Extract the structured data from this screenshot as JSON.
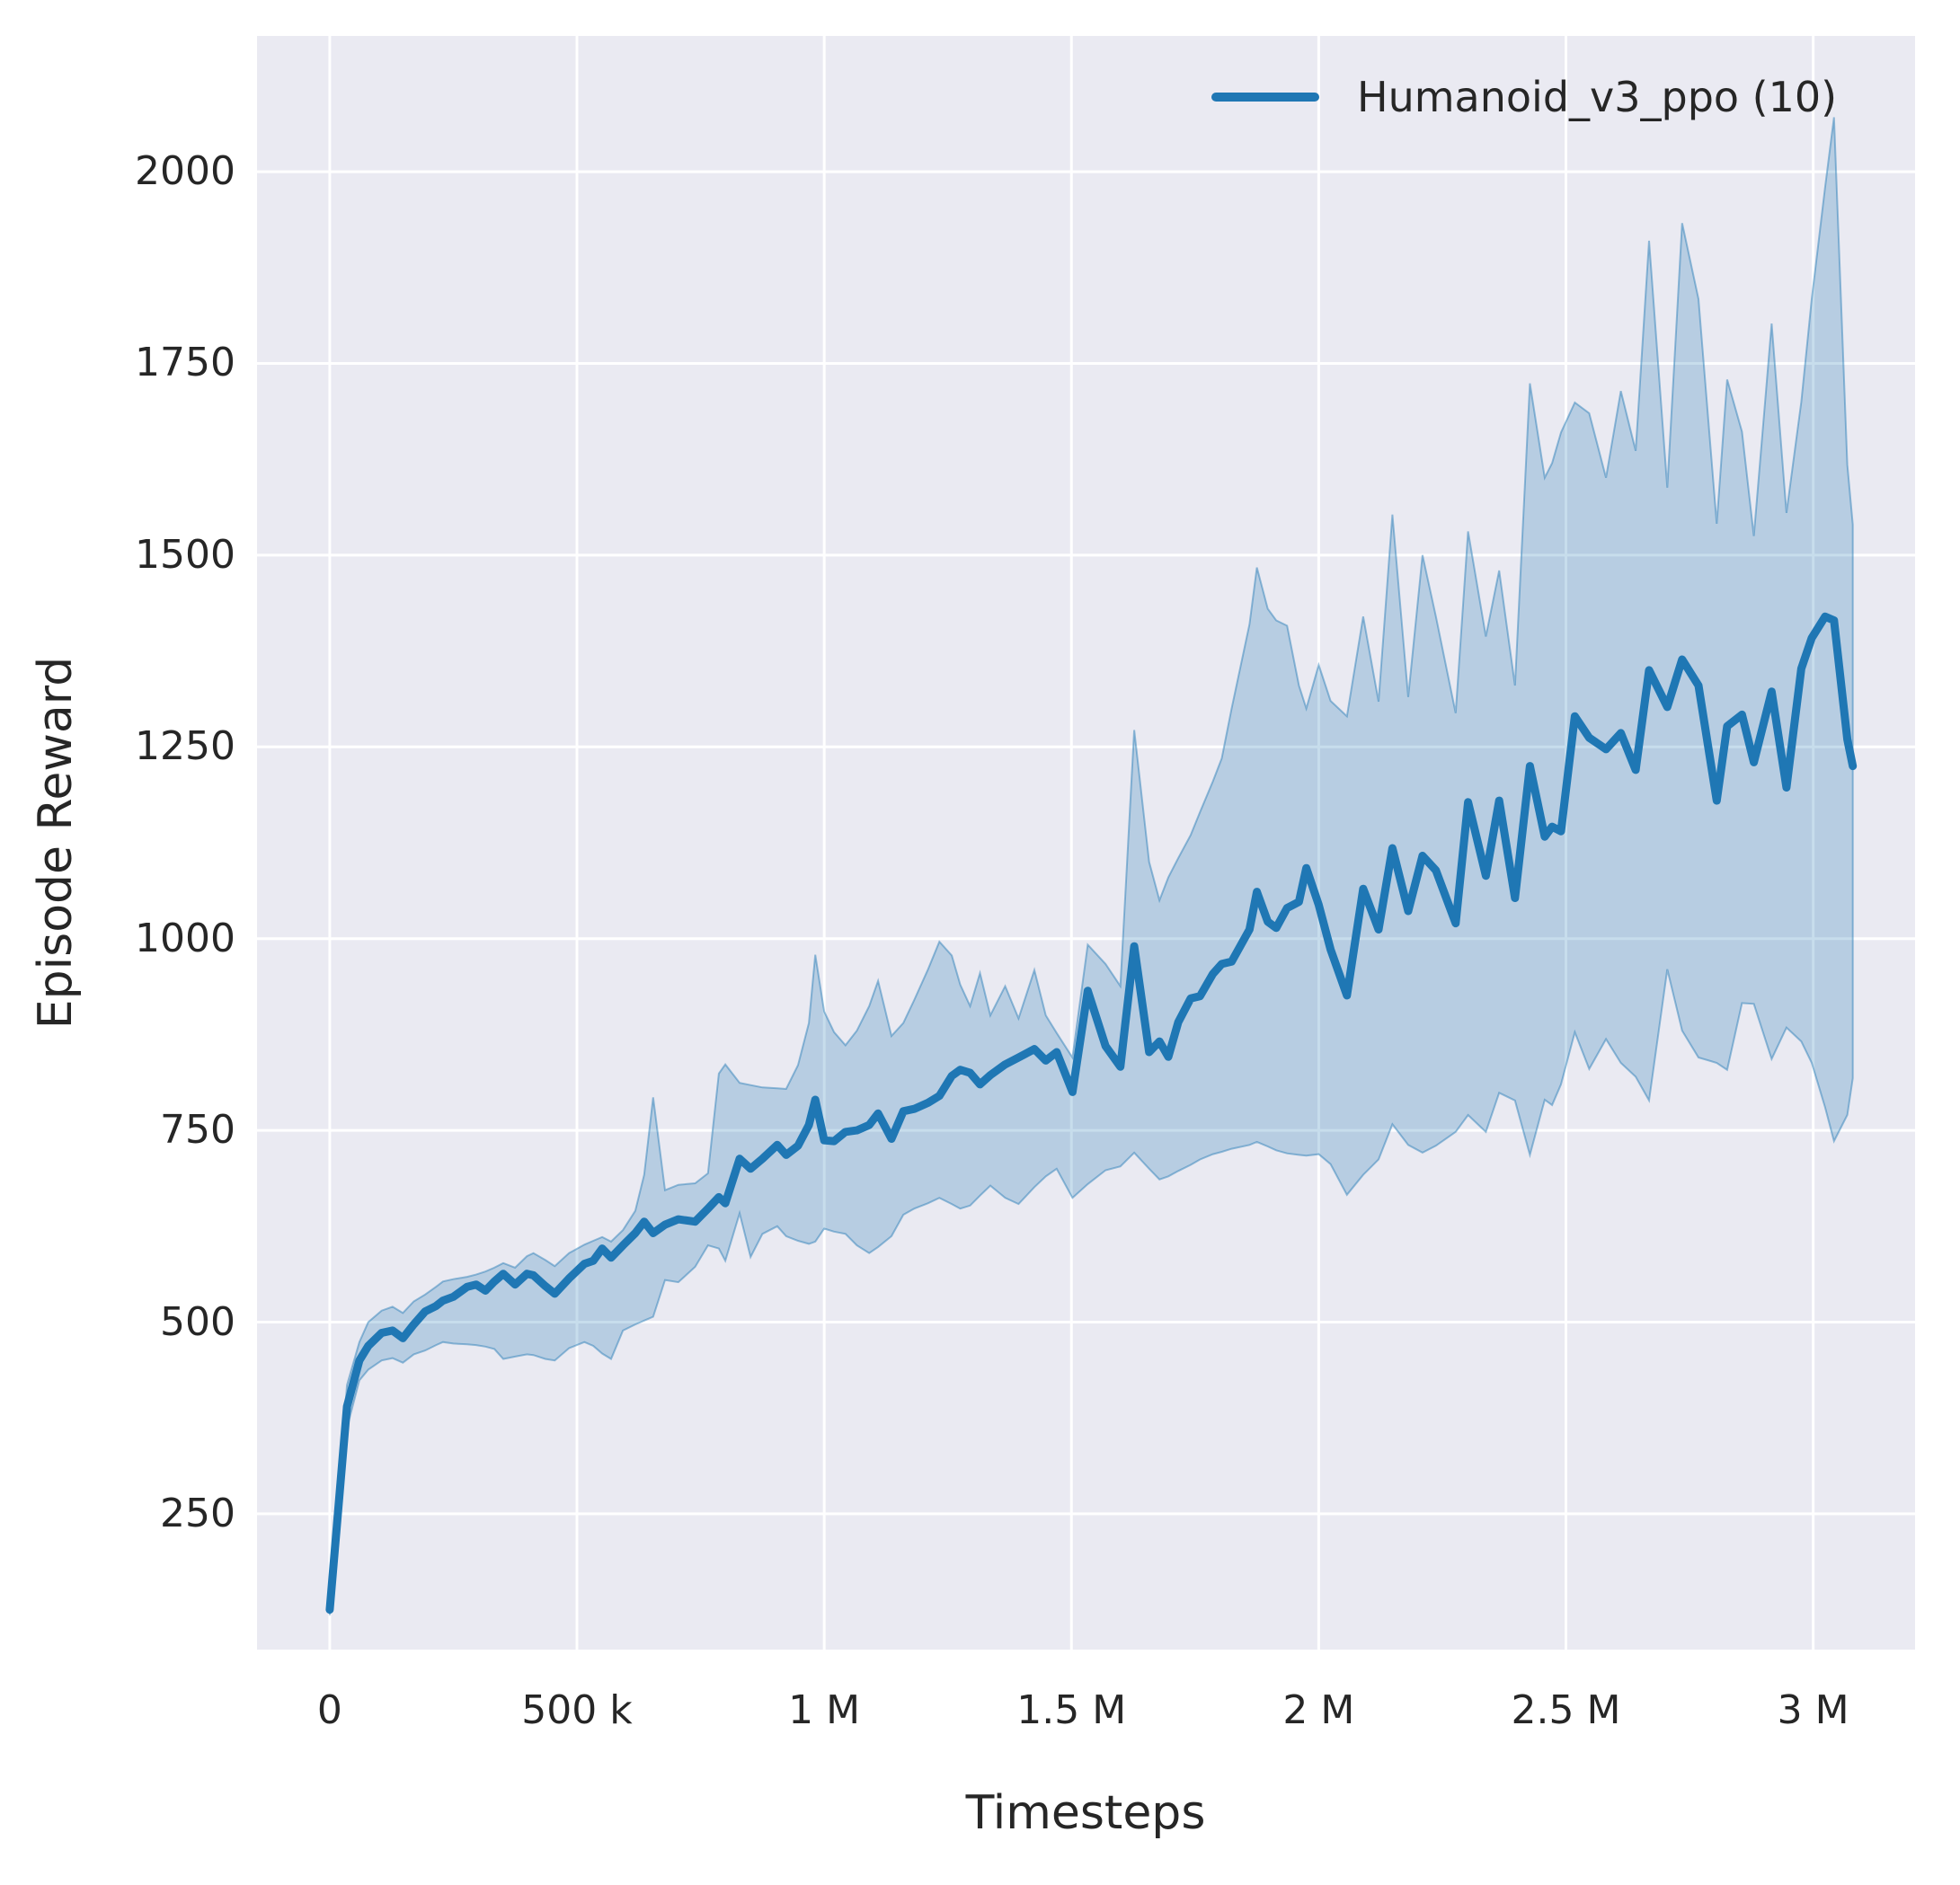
{
  "figure": {
    "background": "#ffffff",
    "axes_background": "#eaeaf2",
    "grid_color": "#ffffff",
    "text_color": "#262626"
  },
  "legend": {
    "entries": [
      {
        "label": "Humanoid_v3_ppo (10)",
        "color": "#1f77b4"
      }
    ]
  },
  "chart_data": {
    "type": "line",
    "title": "",
    "xlabel": "Timesteps",
    "ylabel": "Episode Reward",
    "legend_position": "upper right",
    "grid": true,
    "xlim": [
      -147000,
      3206000
    ],
    "ylim": [
      73,
      2177
    ],
    "x_ticks": [
      {
        "value": 0,
        "label": "0"
      },
      {
        "value": 500000,
        "label": "500 k"
      },
      {
        "value": 1000000,
        "label": "1 M"
      },
      {
        "value": 1500000,
        "label": "1.5 M"
      },
      {
        "value": 2000000,
        "label": "2 M"
      },
      {
        "value": 2500000,
        "label": "2.5 M"
      },
      {
        "value": 3000000,
        "label": "3 M"
      }
    ],
    "y_ticks": [
      {
        "value": 250,
        "label": "250"
      },
      {
        "value": 500,
        "label": "500"
      },
      {
        "value": 750,
        "label": "750"
      },
      {
        "value": 1000,
        "label": "1000"
      },
      {
        "value": 1250,
        "label": "1250"
      },
      {
        "value": 1500,
        "label": "1500"
      },
      {
        "value": 1750,
        "label": "1750"
      },
      {
        "value": 2000,
        "label": "2000"
      }
    ],
    "series": [
      {
        "name": "Humanoid_v3_ppo (10)",
        "color": "#1f77b4",
        "line_width": 9,
        "band_color": "#1f77b4",
        "band_opacity": 0.25,
        "points_format": [
          "timesteps_thousands",
          "mean",
          "band_low",
          "band_high"
        ],
        "points": [
          [
            0,
            125,
            118,
            135
          ],
          [
            35,
            390,
            362,
            418
          ],
          [
            60,
            450,
            424,
            474
          ],
          [
            78,
            469,
            438,
            500
          ],
          [
            105,
            486,
            450,
            515
          ],
          [
            127,
            489,
            453,
            520
          ],
          [
            148,
            479,
            447,
            512
          ],
          [
            170,
            497,
            458,
            527
          ],
          [
            193,
            514,
            463,
            536
          ],
          [
            215,
            521,
            470,
            546
          ],
          [
            229,
            528,
            474,
            553
          ],
          [
            250,
            533,
            472,
            556
          ],
          [
            278,
            546,
            471,
            559
          ],
          [
            296,
            549,
            470,
            562
          ],
          [
            315,
            541,
            468,
            566
          ],
          [
            333,
            553,
            465,
            571
          ],
          [
            351,
            563,
            452,
            577
          ],
          [
            375,
            549,
            455,
            571
          ],
          [
            399,
            563,
            458,
            586
          ],
          [
            412,
            561,
            457,
            590
          ],
          [
            436,
            547,
            452,
            581
          ],
          [
            455,
            537,
            450,
            573
          ],
          [
            484,
            557,
            466,
            590
          ],
          [
            515,
            576,
            474,
            601
          ],
          [
            533,
            580,
            469,
            606
          ],
          [
            551,
            596,
            459,
            611
          ],
          [
            569,
            584,
            452,
            605
          ],
          [
            593,
            600,
            489,
            620
          ],
          [
            618,
            616,
            497,
            645
          ],
          [
            636,
            631,
            502,
            692
          ],
          [
            654,
            616,
            507,
            793
          ],
          [
            678,
            627,
            555,
            672
          ],
          [
            705,
            634,
            552,
            679
          ],
          [
            739,
            631,
            572,
            681
          ],
          [
            765,
            648,
            600,
            694
          ],
          [
            787,
            663,
            596,
            824
          ],
          [
            800,
            655,
            580,
            836
          ],
          [
            829,
            713,
            642,
            812
          ],
          [
            851,
            700,
            585,
            809
          ],
          [
            875,
            713,
            615,
            806
          ],
          [
            905,
            731,
            625,
            805
          ],
          [
            923,
            718,
            612,
            804
          ],
          [
            947,
            730,
            606,
            835
          ],
          [
            969,
            757,
            602,
            890
          ],
          [
            982,
            790,
            605,
            979
          ],
          [
            1000,
            737,
            622,
            905
          ],
          [
            1020,
            736,
            618,
            878
          ],
          [
            1043,
            748,
            615,
            861
          ],
          [
            1066,
            750,
            600,
            880
          ],
          [
            1091,
            757,
            590,
            912
          ],
          [
            1109,
            772,
            598,
            945
          ],
          [
            1136,
            739,
            612,
            873
          ],
          [
            1160,
            775,
            640,
            890
          ],
          [
            1182,
            778,
            648,
            920
          ],
          [
            1210,
            786,
            655,
            960
          ],
          [
            1233,
            795,
            662,
            996
          ],
          [
            1258,
            821,
            654,
            978
          ],
          [
            1275,
            829,
            648,
            940
          ],
          [
            1295,
            825,
            652,
            912
          ],
          [
            1315,
            810,
            665,
            955
          ],
          [
            1336,
            822,
            678,
            900
          ],
          [
            1366,
            836,
            662,
            938
          ],
          [
            1393,
            845,
            654,
            896
          ],
          [
            1425,
            856,
            676,
            959
          ],
          [
            1448,
            841,
            690,
            900
          ],
          [
            1470,
            852,
            700,
            877
          ],
          [
            1502,
            800,
            662,
            845
          ],
          [
            1533,
            932,
            680,
            992
          ],
          [
            1569,
            860,
            698,
            967
          ],
          [
            1599,
            833,
            703,
            938
          ],
          [
            1627,
            990,
            721,
            1272
          ],
          [
            1657,
            852,
            700,
            1100
          ],
          [
            1678,
            866,
            686,
            1050
          ],
          [
            1696,
            846,
            690,
            1080
          ],
          [
            1716,
            891,
            697,
            1105
          ],
          [
            1741,
            922,
            705,
            1135
          ],
          [
            1760,
            925,
            712,
            1165
          ],
          [
            1786,
            954,
            719,
            1205
          ],
          [
            1804,
            967,
            722,
            1235
          ],
          [
            1824,
            970,
            726,
            1300
          ],
          [
            1860,
            1012,
            731,
            1410
          ],
          [
            1875,
            1061,
            735,
            1484
          ],
          [
            1897,
            1022,
            729,
            1430
          ],
          [
            1914,
            1014,
            724,
            1415
          ],
          [
            1936,
            1040,
            720,
            1408
          ],
          [
            1960,
            1048,
            718,
            1330
          ],
          [
            1975,
            1092,
            717,
            1300
          ],
          [
            2000,
            1044,
            719,
            1357
          ],
          [
            2024,
            986,
            706,
            1310
          ],
          [
            2057,
            926,
            666,
            1290
          ],
          [
            2090,
            1065,
            692,
            1420
          ],
          [
            2121,
            1012,
            712,
            1309
          ],
          [
            2149,
            1118,
            758,
            1553
          ],
          [
            2181,
            1036,
            731,
            1315
          ],
          [
            2210,
            1108,
            721,
            1500
          ],
          [
            2237,
            1089,
            730,
            1420
          ],
          [
            2277,
            1020,
            748,
            1294
          ],
          [
            2302,
            1178,
            770,
            1531
          ],
          [
            2338,
            1082,
            748,
            1394
          ],
          [
            2365,
            1180,
            799,
            1480
          ],
          [
            2397,
            1053,
            789,
            1330
          ],
          [
            2427,
            1225,
            718,
            1724
          ],
          [
            2457,
            1133,
            790,
            1601
          ],
          [
            2472,
            1146,
            783,
            1620
          ],
          [
            2490,
            1140,
            810,
            1660
          ],
          [
            2518,
            1290,
            878,
            1699
          ],
          [
            2547,
            1262,
            830,
            1685
          ],
          [
            2581,
            1247,
            869,
            1601
          ],
          [
            2611,
            1268,
            838,
            1714
          ],
          [
            2641,
            1220,
            820,
            1636
          ],
          [
            2668,
            1350,
            789,
            1910
          ],
          [
            2705,
            1302,
            960,
            1588
          ],
          [
            2735,
            1364,
            880,
            1933
          ],
          [
            2768,
            1330,
            845,
            1834
          ],
          [
            2805,
            1180,
            838,
            1541
          ],
          [
            2826,
            1277,
            829,
            1729
          ],
          [
            2856,
            1292,
            916,
            1661
          ],
          [
            2880,
            1230,
            915,
            1525
          ],
          [
            2916,
            1322,
            843,
            1802
          ],
          [
            2946,
            1197,
            884,
            1555
          ],
          [
            2976,
            1352,
            866,
            1700
          ],
          [
            2997,
            1392,
            838,
            1834
          ],
          [
            3024,
            1420,
            780,
            1980
          ],
          [
            3042,
            1415,
            736,
            2071
          ],
          [
            3069,
            1260,
            770,
            1618
          ],
          [
            3080,
            1225,
            818,
            1540
          ]
        ]
      }
    ]
  }
}
